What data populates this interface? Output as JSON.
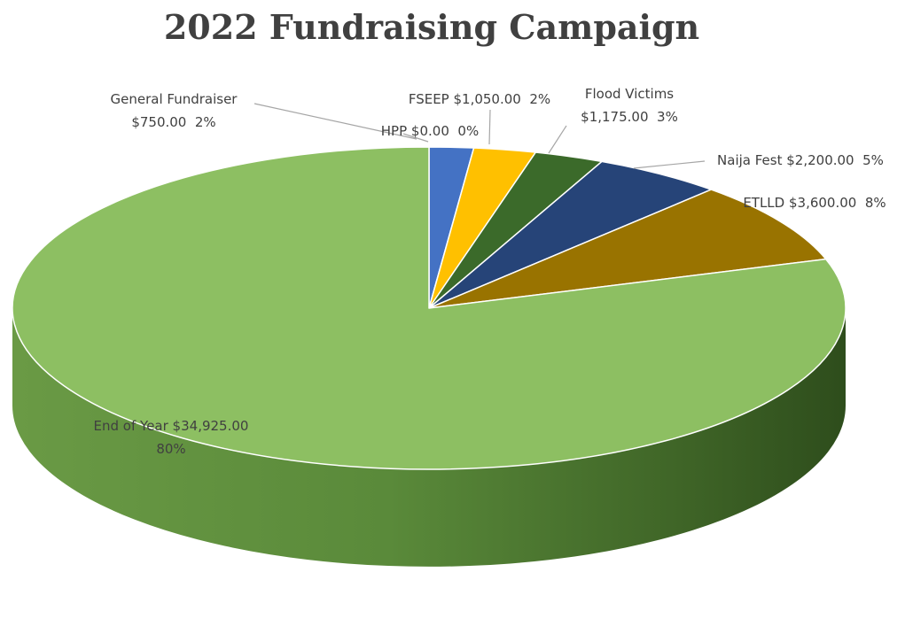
{
  "chart_data": {
    "type": "pie",
    "title": "2022 Fundraising Campaign",
    "slices": [
      {
        "name": "General Fundraiser",
        "value": 750.0,
        "value_label": "$750.00",
        "percent_label": "2%",
        "color": "#4472C4"
      },
      {
        "name": "HPP",
        "value": 0.0,
        "value_label": "$0.00",
        "percent_label": "0%",
        "color": "#ED7D31"
      },
      {
        "name": "FSEEP",
        "value": 1050.0,
        "value_label": "$1,050.00",
        "percent_label": "2%",
        "color": "#FFC000"
      },
      {
        "name": "Flood Victims",
        "value": 1175.0,
        "value_label": "$1,175.00",
        "percent_label": "3%",
        "color": "#3B6A2A"
      },
      {
        "name": "Naija Fest",
        "value": 2200.0,
        "value_label": "$2,200.00",
        "percent_label": "5%",
        "color": "#264478"
      },
      {
        "name": "ETLLD",
        "value": 3600.0,
        "value_label": "$3,600.00",
        "percent_label": "8%",
        "color": "#997300"
      },
      {
        "name": "End of Year",
        "value": 34925.0,
        "value_label": "$34,925.00",
        "percent_label": "80%",
        "color": "#8DBF62"
      }
    ],
    "start_angle": "12 o'clock",
    "direction": "clockwise",
    "style": "3d-tilted",
    "legend": "none (data labels with category name and value)"
  }
}
